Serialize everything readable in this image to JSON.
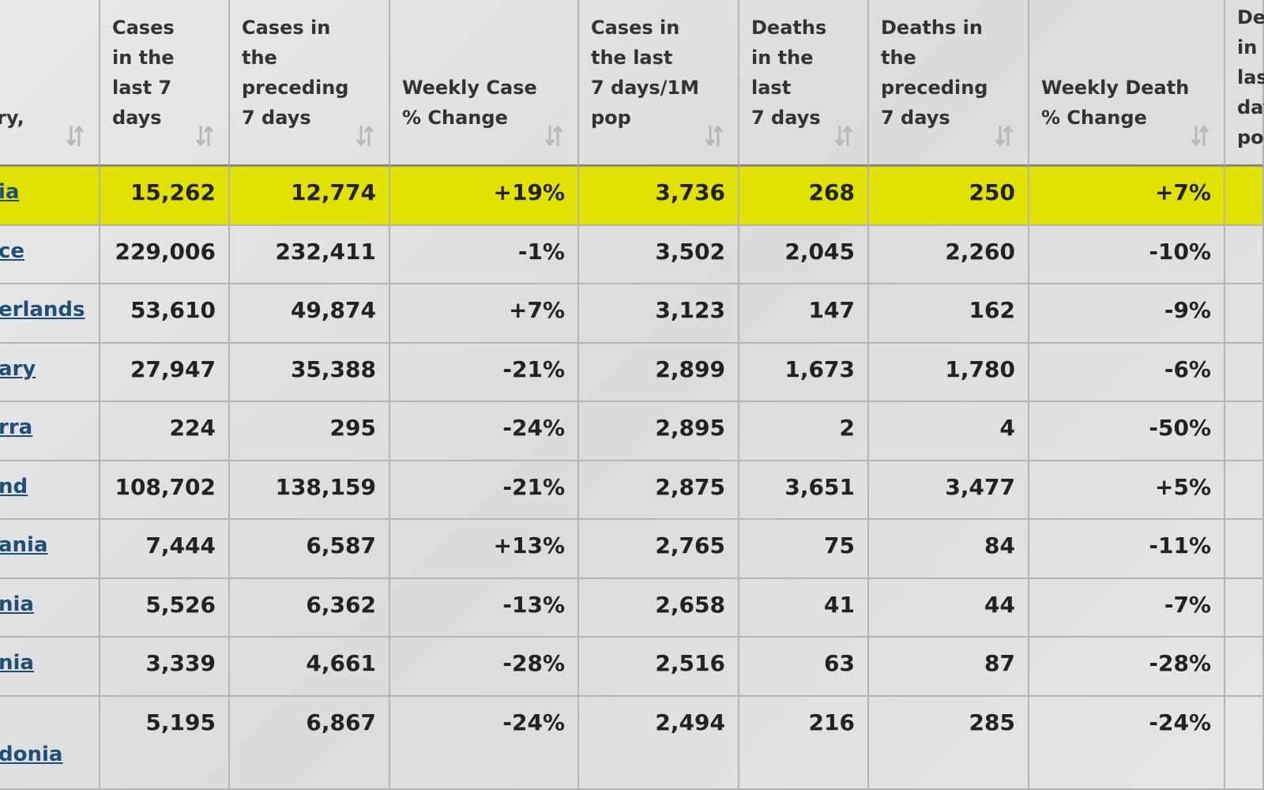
{
  "table": {
    "headers": [
      [
        "ry,"
      ],
      [
        "Cases",
        "in the",
        "last 7",
        "days"
      ],
      [
        "Cases in",
        "the",
        "preceding",
        "7 days"
      ],
      [
        "Weekly Case",
        "% Change"
      ],
      [
        "Cases in",
        "the last",
        "7 days/1M",
        "pop"
      ],
      [
        "Deaths",
        "in the",
        "last",
        "7 days"
      ],
      [
        "Deaths in",
        "the",
        "preceding",
        "7 days"
      ],
      [
        "Weekly Death",
        "% Change"
      ],
      [
        "De",
        "in t",
        "las",
        "day",
        "po"
      ]
    ],
    "rows": [
      [
        "ia",
        "15,262",
        "12,774",
        "+19%",
        "3,736",
        "268",
        "250",
        "+7%"
      ],
      [
        "ce",
        "229,006",
        "232,411",
        "-1%",
        "3,502",
        "2,045",
        "2,260",
        "-10%"
      ],
      [
        "erlands",
        "53,610",
        "49,874",
        "+7%",
        "3,123",
        "147",
        "162",
        "-9%"
      ],
      [
        "ary",
        "27,947",
        "35,388",
        "-21%",
        "2,899",
        "1,673",
        "1,780",
        "-6%"
      ],
      [
        "rra",
        "224",
        "295",
        "-24%",
        "2,895",
        "2",
        "4",
        "-50%"
      ],
      [
        "nd",
        "108,702",
        "138,159",
        "-21%",
        "2,875",
        "3,651",
        "3,477",
        "+5%"
      ],
      [
        "ania",
        "7,444",
        "6,587",
        "+13%",
        "2,765",
        "75",
        "84",
        "-11%"
      ],
      [
        "nia",
        "5,526",
        "6,362",
        "-13%",
        "2,658",
        "41",
        "44",
        "-7%"
      ],
      [
        "nia",
        "3,339",
        "4,661",
        "-28%",
        "2,516",
        "63",
        "87",
        "-28%"
      ],
      [
        "donia",
        "5,195",
        "6,867",
        "-24%",
        "2,494",
        "216",
        "285",
        "-24%"
      ]
    ]
  }
}
